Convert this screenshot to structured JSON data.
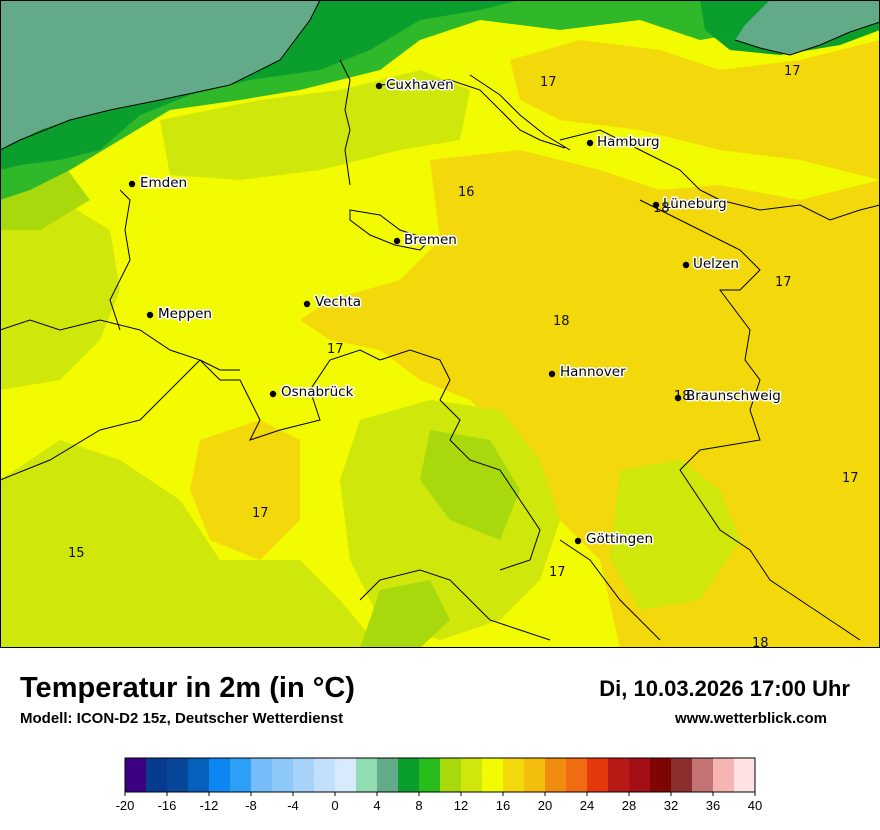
{
  "colors": {
    "sea": "#63aa88",
    "coast_green": "#0a9e2c",
    "green_mid": "#2fb82a",
    "lime": "#a7d90d",
    "yellow_green": "#cfe70a",
    "yellow": "#f3fb00",
    "gold": "#f3d90b",
    "border": "#000000",
    "scale_colors": [
      "#3b0083",
      "#073b90",
      "#08469a",
      "#0660be",
      "#0c86f0",
      "#2c9ff7",
      "#75bcf8",
      "#8ec8f8",
      "#a7d3fa",
      "#c2e0fb",
      "#d8ebfc",
      "#90dcb3",
      "#63aa88",
      "#0a9e2c",
      "#28bc1c",
      "#a7d90d",
      "#cfe70a",
      "#f3fb00",
      "#f3d90b",
      "#f3be0d",
      "#f28c0e",
      "#f06b11",
      "#e5380c",
      "#b71a16",
      "#a40f16",
      "#7f0504",
      "#8b2f2e",
      "#c57475",
      "#f5b5b2",
      "#fde2e1"
    ]
  },
  "map": {
    "cities": [
      {
        "name": "Cuxhaven",
        "icon": "city-dot"
      },
      {
        "name": "Hamburg",
        "icon": "city-dot"
      },
      {
        "name": "Emden",
        "icon": "city-dot"
      },
      {
        "name": "Lüneburg",
        "icon": "city-dot"
      },
      {
        "name": "Bremen",
        "icon": "city-dot"
      },
      {
        "name": "Uelzen",
        "icon": "city-dot"
      },
      {
        "name": "Vechta",
        "icon": "city-dot"
      },
      {
        "name": "Meppen",
        "icon": "city-dot"
      },
      {
        "name": "Hannover",
        "icon": "city-dot"
      },
      {
        "name": "Osnabrück",
        "icon": "city-dot"
      },
      {
        "name": "Braunschweig",
        "icon": "city-dot"
      },
      {
        "name": "Göttingen",
        "icon": "city-dot"
      }
    ],
    "temperature_labels": [
      "17",
      "17",
      "16",
      "18",
      "17",
      "18",
      "17",
      "18",
      "17",
      "17",
      "15",
      "17",
      "18"
    ]
  },
  "footer": {
    "title": "Temperatur in 2m (in °C)",
    "model": "Modell: ICON-D2 15z, Deutscher Wetterdienst",
    "datetime": "Di, 10.03.2026 17:00 Uhr",
    "website": "www.wetterblick.com"
  },
  "scale": {
    "min": -20,
    "max": 40,
    "step": 2,
    "tick_labels": [
      "-20",
      "-16",
      "-12",
      "-8",
      "-4",
      "0",
      "4",
      "8",
      "12",
      "16",
      "20",
      "24",
      "28",
      "32",
      "36",
      "40"
    ]
  }
}
